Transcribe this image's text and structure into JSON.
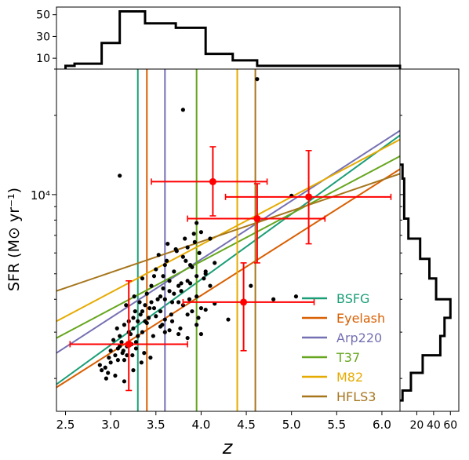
{
  "chart_data": {
    "type": "scatter",
    "xlabel": "z",
    "ylabel": "SFR (M⊙ yr⁻¹)",
    "xlim": [
      2.4,
      6.2
    ],
    "ylim": [
      1500,
      30000
    ],
    "yscale": "log",
    "x_ticks": [
      2.5,
      3.0,
      3.5,
      4.0,
      4.5,
      5.0,
      5.5,
      6.0
    ],
    "x_tick_labels": [
      "2.5",
      "3.0",
      "3.5",
      "4.0",
      "4.5",
      "5.0",
      "5.5",
      "6.0"
    ],
    "y_tick_labels": [
      {
        "value": 10000,
        "label": "10⁴"
      }
    ],
    "legend_position": "lower-right",
    "reference_lines": [
      {
        "name": "BSFG",
        "z": 3.3,
        "color": "#1b9e77",
        "line": [
          [
            2.4,
            1900
          ],
          [
            6.2,
            16800
          ]
        ]
      },
      {
        "name": "Eyelash",
        "z": 3.4,
        "color": "#d95f02",
        "line": [
          [
            2.4,
            1850
          ],
          [
            6.2,
            12500
          ]
        ]
      },
      {
        "name": "Arp220",
        "z": 3.6,
        "color": "#7570b3",
        "line": [
          [
            2.4,
            2500
          ],
          [
            6.2,
            17500
          ]
        ]
      },
      {
        "name": "T37",
        "z": 3.95,
        "color": "#66a61e",
        "line": [
          [
            2.4,
            2850
          ],
          [
            6.2,
            14000
          ]
        ]
      },
      {
        "name": "M82",
        "z": 4.4,
        "color": "#e6ab02",
        "line": [
          [
            2.4,
            3300
          ],
          [
            6.2,
            16200
          ]
        ]
      },
      {
        "name": "HFLS3",
        "z": 4.6,
        "color": "#a6761d",
        "line": [
          [
            2.4,
            4300
          ],
          [
            6.2,
            12000
          ]
        ]
      }
    ],
    "points": [
      [
        2.88,
        2250
      ],
      [
        2.94,
        2200
      ],
      [
        2.97,
        2100
      ],
      [
        3.0,
        2300
      ],
      [
        3.05,
        2450
      ],
      [
        3.08,
        2600
      ],
      [
        3.12,
        2750
      ],
      [
        3.15,
        2350
      ],
      [
        3.18,
        2650
      ],
      [
        3.22,
        2950
      ],
      [
        3.25,
        3100
      ],
      [
        3.28,
        2750
      ],
      [
        3.3,
        3300
      ],
      [
        3.33,
        3500
      ],
      [
        3.35,
        3000
      ],
      [
        3.38,
        3800
      ],
      [
        3.4,
        4200
      ],
      [
        3.42,
        3400
      ],
      [
        3.45,
        4500
      ],
      [
        3.48,
        4900
      ],
      [
        3.5,
        5200
      ],
      [
        3.52,
        4000
      ],
      [
        3.55,
        3600
      ],
      [
        3.58,
        4400
      ],
      [
        3.6,
        3000
      ],
      [
        3.62,
        5600
      ],
      [
        3.65,
        4700
      ],
      [
        3.68,
        3300
      ],
      [
        3.7,
        5100
      ],
      [
        3.72,
        6200
      ],
      [
        3.75,
        3900
      ],
      [
        3.78,
        4300
      ],
      [
        3.8,
        5800
      ],
      [
        3.82,
        6800
      ],
      [
        3.85,
        3500
      ],
      [
        3.88,
        4600
      ],
      [
        3.9,
        5300
      ],
      [
        3.92,
        7100
      ],
      [
        3.95,
        4100
      ],
      [
        3.98,
        6000
      ],
      [
        4.0,
        3700
      ],
      [
        4.05,
        5000
      ],
      [
        4.1,
        4500
      ],
      [
        4.15,
        5500
      ],
      [
        3.2,
        3300
      ],
      [
        3.1,
        2900
      ],
      [
        3.03,
        2800
      ],
      [
        3.27,
        3600
      ],
      [
        3.37,
        2500
      ],
      [
        3.47,
        2900
      ],
      [
        3.57,
        3200
      ],
      [
        3.67,
        3500
      ],
      [
        3.77,
        3100
      ],
      [
        3.87,
        4000
      ],
      [
        3.97,
        3400
      ],
      [
        2.98,
        2400
      ],
      [
        3.07,
        3100
      ],
      [
        3.17,
        3800
      ],
      [
        3.26,
        4100
      ],
      [
        3.43,
        3700
      ],
      [
        3.53,
        5900
      ],
      [
        3.63,
        6500
      ],
      [
        3.73,
        6100
      ],
      [
        3.83,
        5600
      ],
      [
        3.93,
        6600
      ],
      [
        4.03,
        4800
      ],
      [
        3.13,
        2500
      ],
      [
        3.23,
        2700
      ],
      [
        3.32,
        3900
      ],
      [
        3.6,
        4000
      ],
      [
        3.7,
        4200
      ],
      [
        3.8,
        3800
      ],
      [
        3.9,
        3600
      ],
      [
        3.5,
        3450
      ],
      [
        3.6,
        3350
      ],
      [
        3.4,
        3250
      ],
      [
        3.3,
        2900
      ],
      [
        3.2,
        3000
      ],
      [
        3.1,
        2650
      ],
      [
        3.0,
        2550
      ],
      [
        3.55,
        3150
      ],
      [
        3.65,
        3050
      ],
      [
        3.75,
        2950
      ],
      [
        3.85,
        2850
      ],
      [
        3.95,
        3200
      ],
      [
        4.05,
        3650
      ],
      [
        4.15,
        3850
      ],
      [
        3.44,
        2400
      ],
      [
        3.34,
        2300
      ],
      [
        3.24,
        2450
      ],
      [
        3.14,
        2550
      ],
      [
        4.0,
        2950
      ],
      [
        3.35,
        4800
      ],
      [
        3.6,
        5400
      ],
      [
        3.85,
        6300
      ],
      [
        3.1,
        11800
      ],
      [
        3.8,
        21000
      ],
      [
        4.0,
        7200
      ],
      [
        4.1,
        6800
      ],
      [
        3.95,
        7800
      ],
      [
        2.9,
        2150
      ],
      [
        3.05,
        2050
      ],
      [
        3.15,
        1950
      ],
      [
        3.25,
        2150
      ],
      [
        4.3,
        3350
      ],
      [
        4.55,
        4500
      ],
      [
        4.8,
        4000
      ],
      [
        5.05,
        4100
      ],
      [
        5.0,
        9900
      ],
      [
        4.62,
        27500
      ],
      [
        3.88,
        5400
      ],
      [
        3.78,
        4600
      ],
      [
        3.68,
        3900
      ],
      [
        3.58,
        4900
      ],
      [
        3.48,
        3700
      ],
      [
        3.38,
        3300
      ],
      [
        3.28,
        2600
      ],
      [
        3.18,
        2450
      ],
      [
        3.08,
        2350
      ],
      [
        2.95,
        2000
      ],
      [
        3.45,
        3900
      ],
      [
        3.55,
        4100
      ],
      [
        3.65,
        4300
      ],
      [
        3.75,
        4500
      ],
      [
        3.85,
        4700
      ],
      [
        3.95,
        4900
      ],
      [
        4.05,
        5100
      ],
      [
        3.25,
        3400
      ],
      [
        3.35,
        3600
      ],
      [
        3.15,
        3200
      ]
    ],
    "measurements": [
      {
        "z": 3.2,
        "z_lo": 2.55,
        "z_hi": 3.85,
        "sfr": 2700,
        "sfr_lo": 1800,
        "sfr_hi": 4700
      },
      {
        "z": 4.13,
        "z_lo": 3.45,
        "z_hi": 4.73,
        "sfr": 11200,
        "sfr_lo": 8300,
        "sfr_hi": 15200
      },
      {
        "z": 4.62,
        "z_lo": 3.85,
        "z_hi": 5.37,
        "sfr": 8100,
        "sfr_lo": 5500,
        "sfr_hi": 11000
      },
      {
        "z": 4.47,
        "z_lo": 3.8,
        "z_hi": 5.25,
        "sfr": 3900,
        "sfr_lo": 2550,
        "sfr_hi": 5500
      },
      {
        "z": 5.19,
        "z_lo": 4.27,
        "z_hi": 6.1,
        "sfr": 9800,
        "sfr_lo": 6500,
        "sfr_hi": 14700
      }
    ],
    "marginal_x": {
      "bin_edges": [
        2.5,
        2.6,
        2.9,
        3.1,
        3.38,
        3.72,
        4.05,
        4.35,
        4.62,
        6.2
      ],
      "counts": [
        3,
        5,
        24,
        53,
        42,
        38,
        14,
        8,
        3
      ],
      "ticks": [
        10,
        30,
        50
      ],
      "tick_labels": [
        "10",
        "30",
        "50"
      ],
      "ylim": [
        0,
        57
      ]
    },
    "marginal_y": {
      "bin_edges": [
        1650,
        1800,
        2100,
        2450,
        2900,
        3400,
        4000,
        4800,
        5700,
        6800,
        8100,
        9700,
        11500,
        13000
      ],
      "counts": [
        3,
        13,
        27,
        48,
        53,
        60,
        43,
        35,
        24,
        10,
        5,
        5,
        3
      ],
      "ticks": [
        20,
        40,
        60
      ],
      "tick_labels": [
        "20",
        "40",
        "60"
      ],
      "xlim": [
        0,
        70
      ]
    }
  }
}
